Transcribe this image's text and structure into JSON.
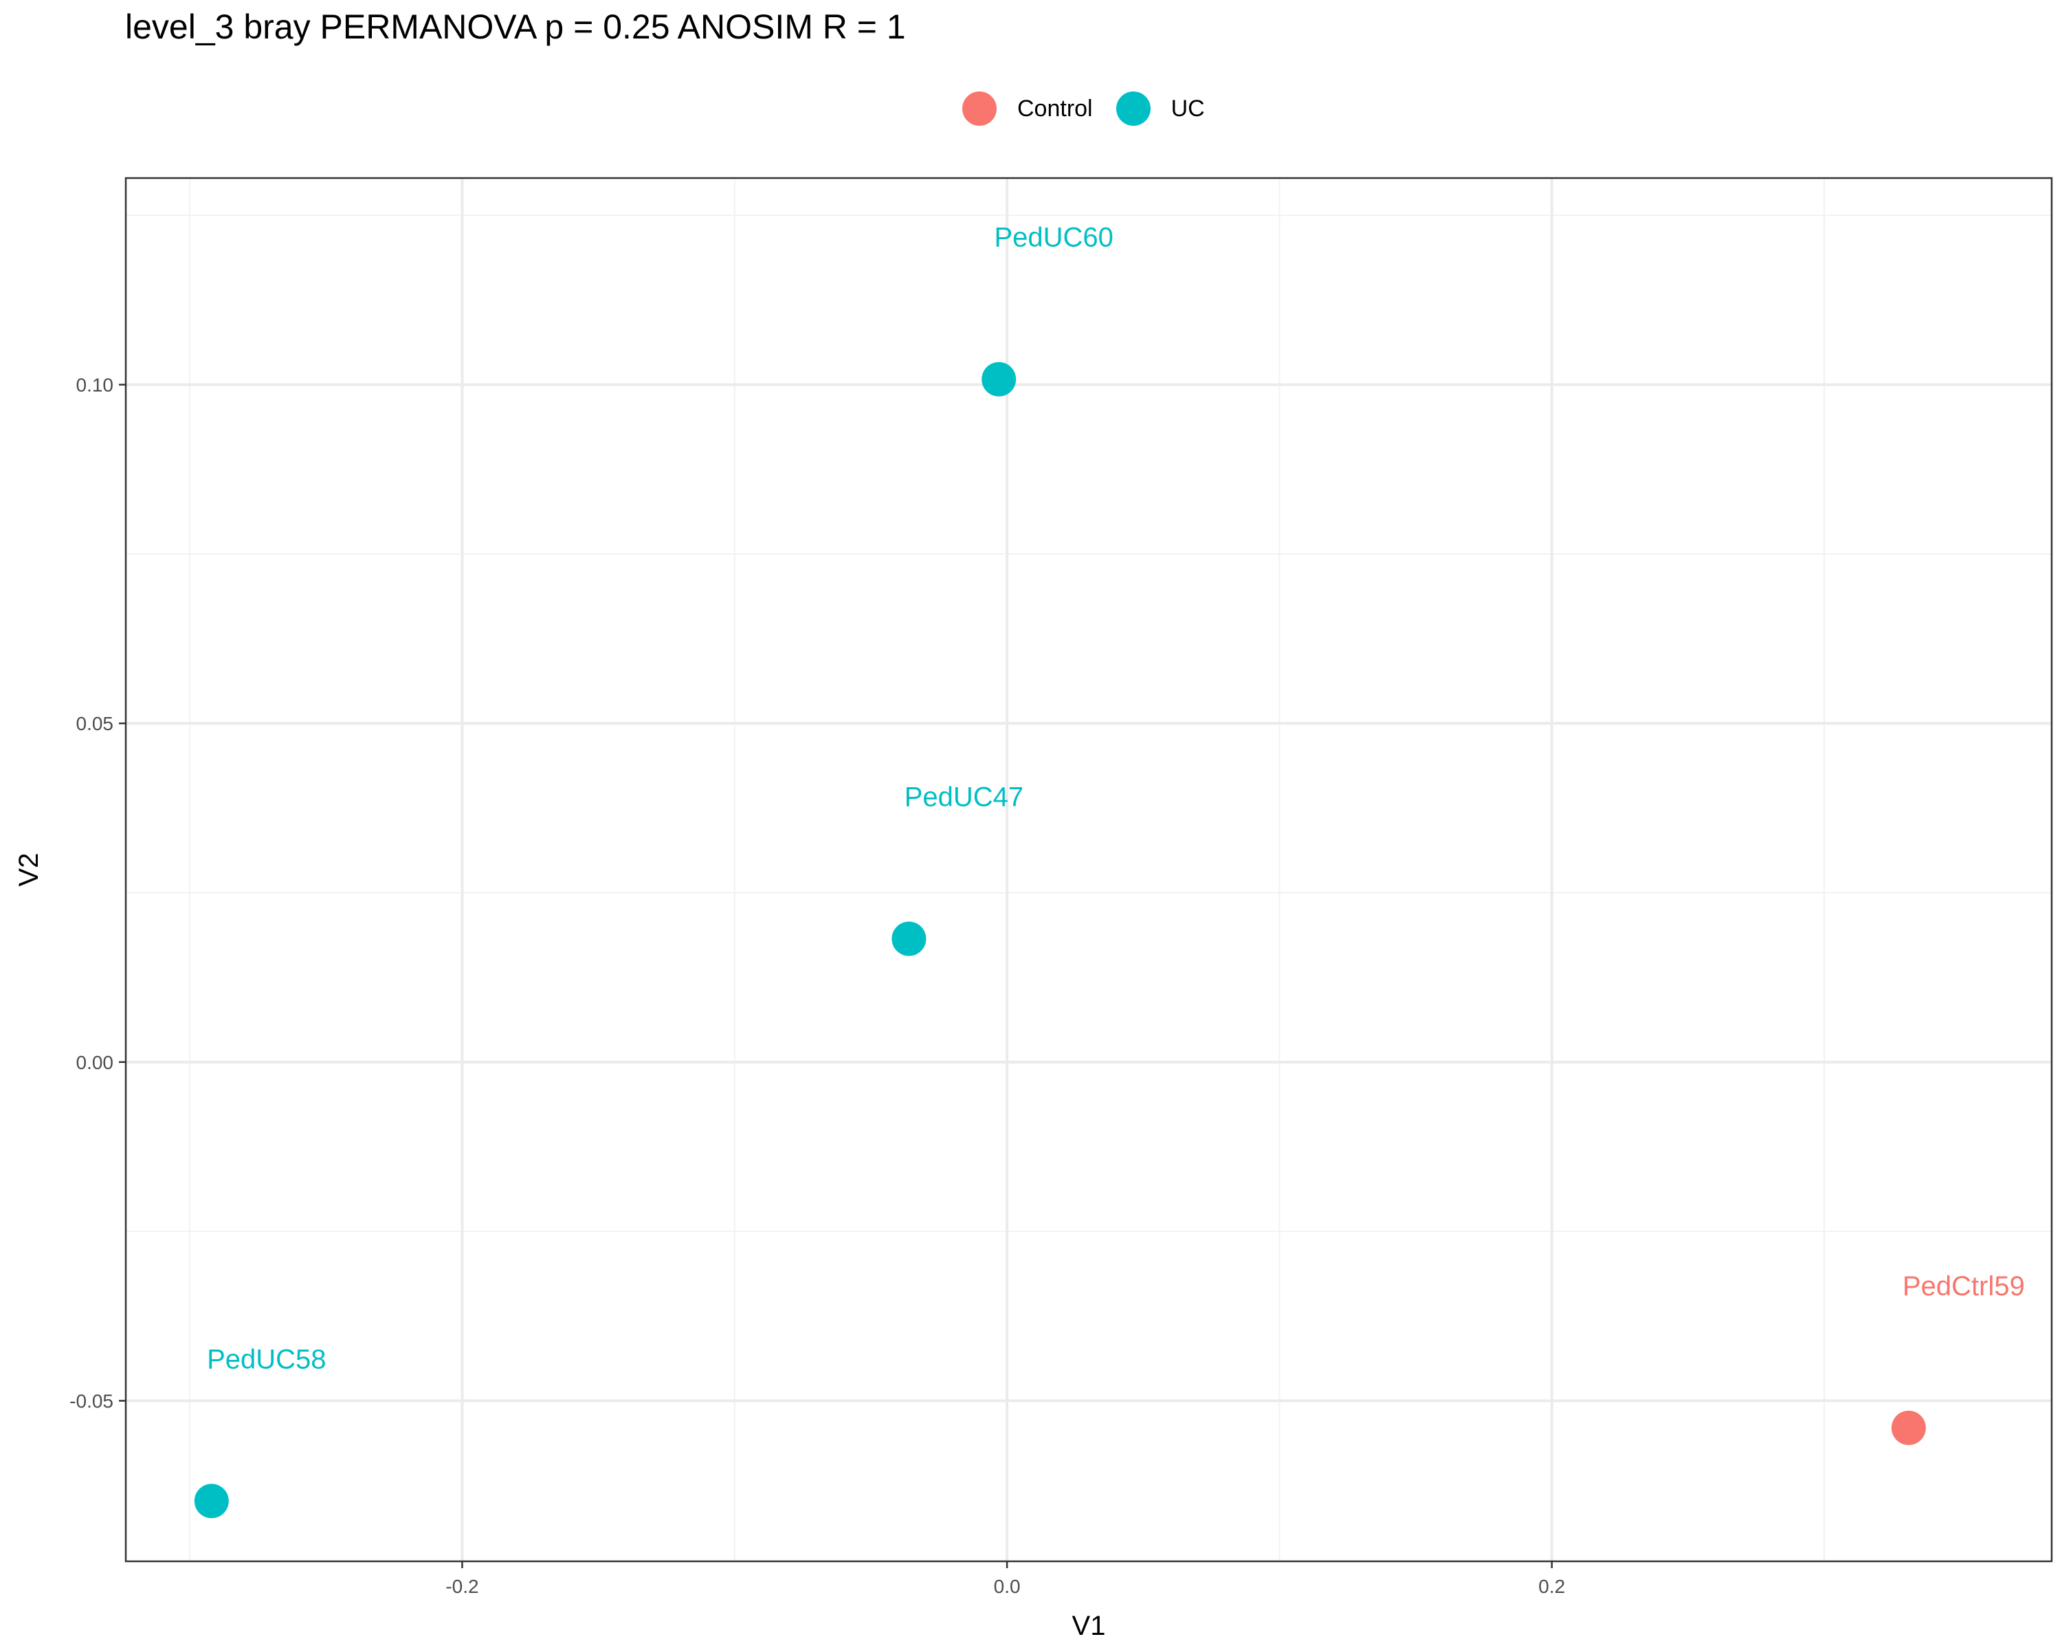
{
  "chart_data": {
    "type": "scatter",
    "title": "level_3 bray PERMANOVA p = 0.25 ANOSIM R = 1",
    "xlabel": "V1",
    "ylabel": "V2",
    "xlim": [
      -0.3235,
      0.3835
    ],
    "ylim": [
      -0.0737,
      0.1305
    ],
    "x_ticks": [
      -0.2,
      0.0,
      0.2
    ],
    "x_tick_labels": [
      "-0.2",
      "0.0",
      "0.2"
    ],
    "y_ticks": [
      -0.05,
      0.0,
      0.05,
      0.1
    ],
    "y_tick_labels": [
      "-0.05",
      "0.00",
      "0.05",
      "0.10"
    ],
    "grid": true,
    "legend_position": "top",
    "series": [
      {
        "name": "Control",
        "color": "#F8766D",
        "points": [
          {
            "label": "PedCtrl59",
            "x": 0.331,
            "y": -0.054
          }
        ]
      },
      {
        "name": "UC",
        "color": "#00BFC4",
        "points": [
          {
            "label": "PedUC60",
            "x": -0.003,
            "y": 0.1008
          },
          {
            "label": "PedUC47",
            "x": -0.036,
            "y": 0.0182
          },
          {
            "label": "PedUC58",
            "x": -0.292,
            "y": -0.0648
          }
        ]
      }
    ]
  }
}
